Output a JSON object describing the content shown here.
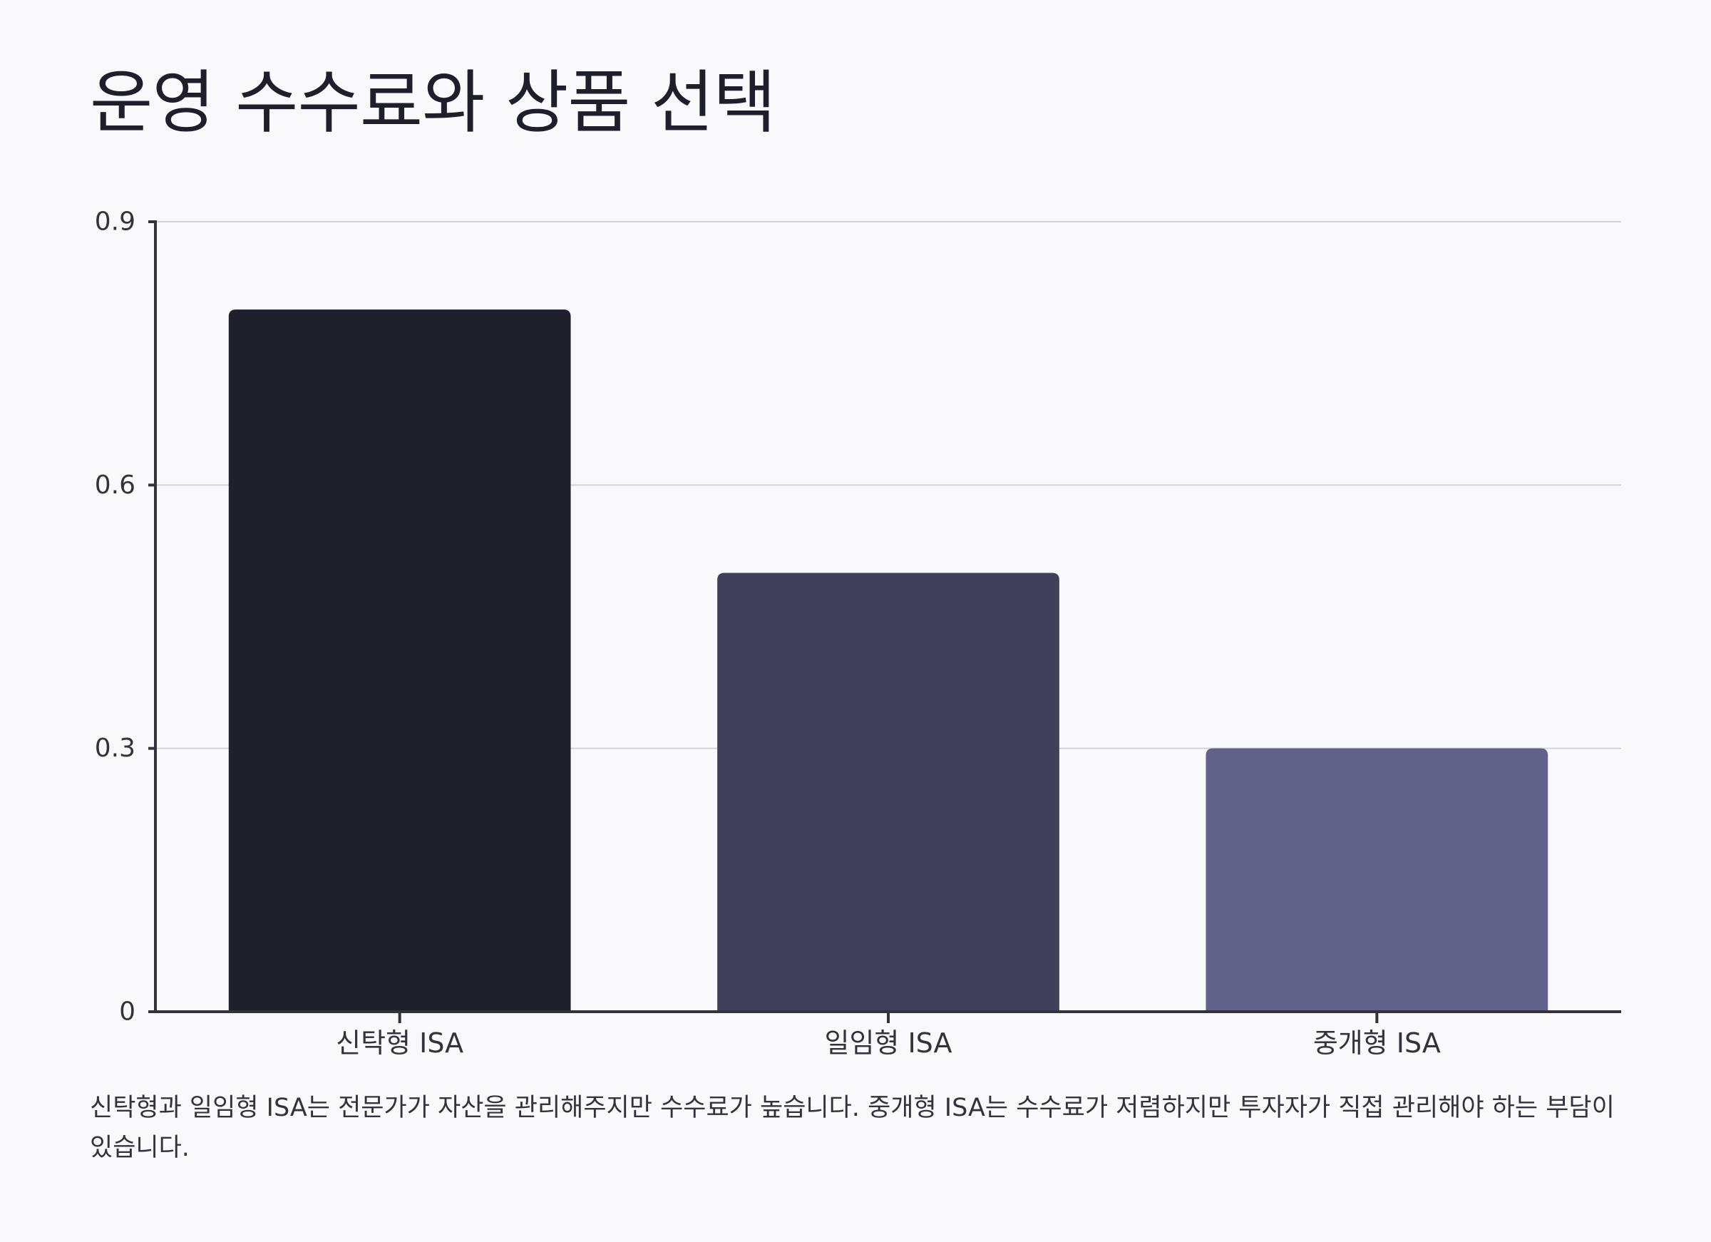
{
  "title": "운영 수수료와 상품 선택",
  "caption": "신탁형과 일임형 ISA는 전문가가 자산을 관리해주지만 수수료가 높습니다. 중개형 ISA는 수수료가 저렴하지만 투자자가 직접 관리해야 하는 부담이 있습니다.",
  "chart_data": {
    "type": "bar",
    "title": "운영 수수료와 상품 선택",
    "xlabel": "",
    "ylabel": "",
    "categories": [
      "신탁형 ISA",
      "일임형 ISA",
      "중개형 ISA"
    ],
    "values": [
      0.8,
      0.5,
      0.3
    ],
    "bar_colors": [
      "#20202d",
      "#41405b",
      "#626189"
    ],
    "ylim": [
      0,
      0.9
    ],
    "yticks": [
      0,
      0.3,
      0.6,
      0.9
    ],
    "ytick_labels": [
      "0",
      "0.3",
      "0.6",
      "0.9"
    ],
    "grid": true,
    "legend": "none"
  },
  "colors": {
    "background": "#f9f9fb",
    "text": "#1f1f2b",
    "axis": "#33333d",
    "grid": "#d3d3d8"
  }
}
